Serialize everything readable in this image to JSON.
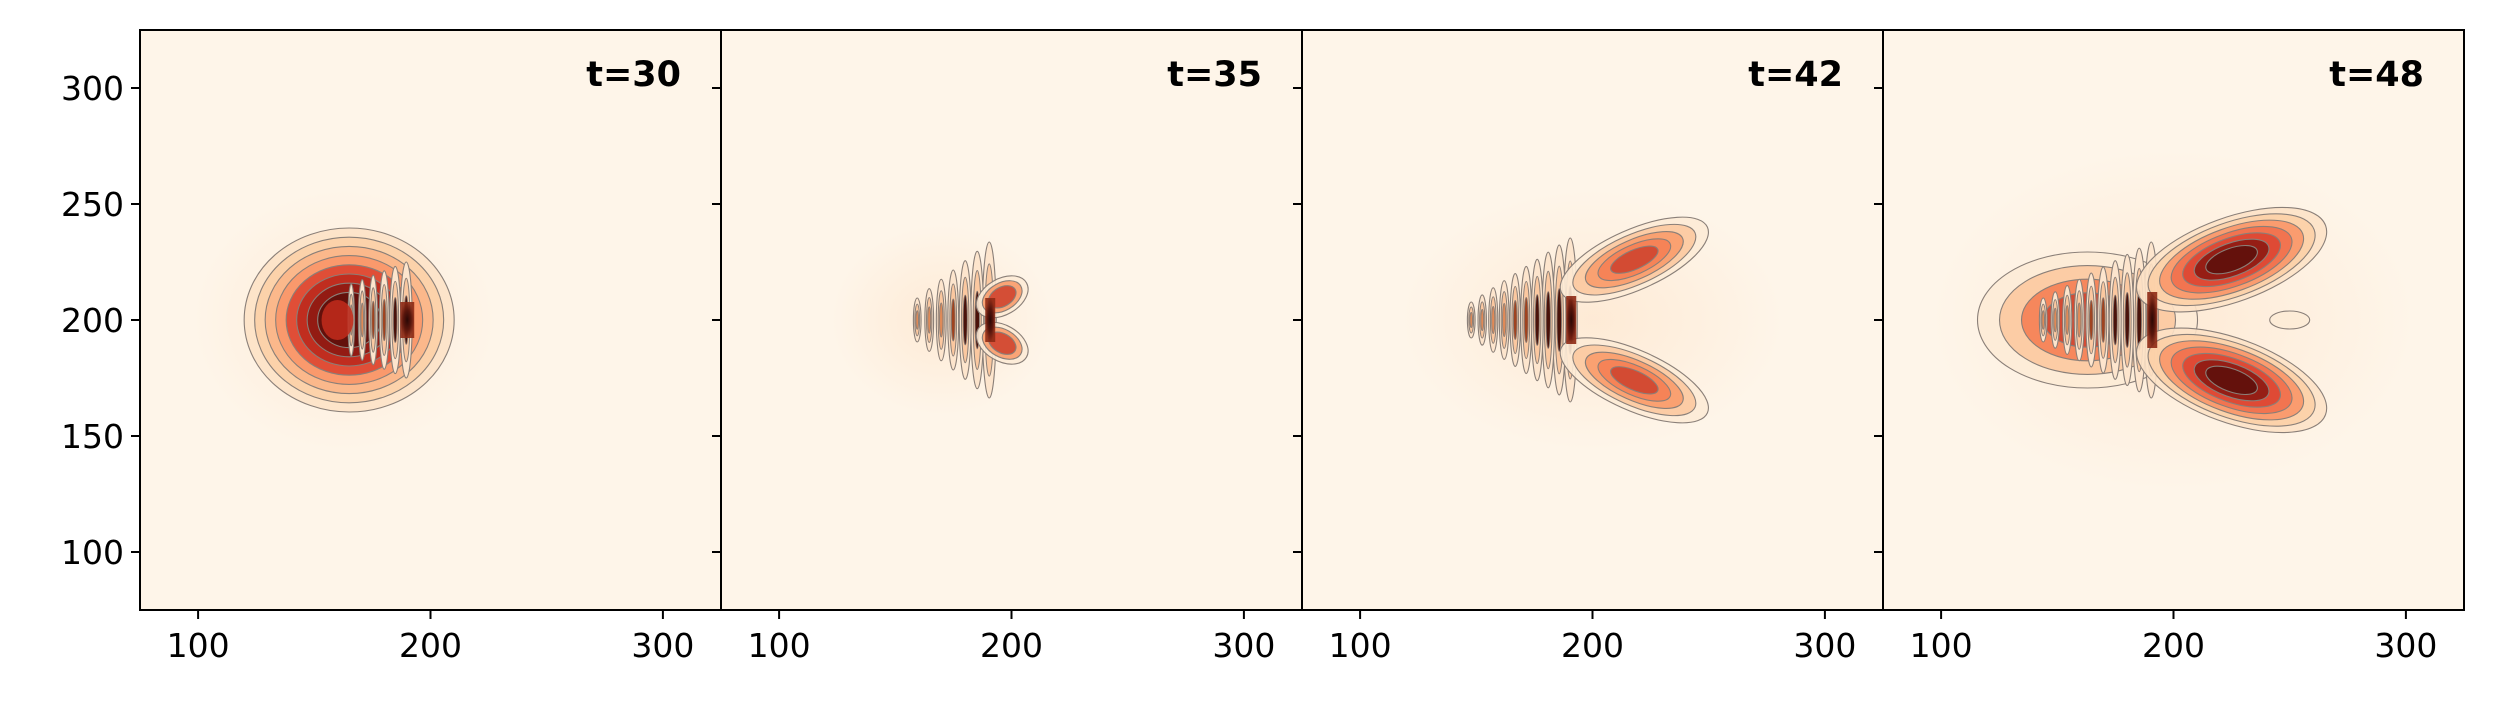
{
  "chart_data": {
    "type": "heatmap",
    "layout": "four panels in a row sharing the y-axis, filled contour plot with thin gray contour lines",
    "colormap": "Oranges-to-dark-red (light cream background, darkest values near black-red)",
    "colors": {
      "background": "#fef5e9",
      "light": "#fde0c0",
      "mid": "#fc9960",
      "high": "#d6301f",
      "peak": "#3a0c07",
      "contour": "#8a7f78"
    },
    "xlim": [
      75,
      325
    ],
    "ylim": [
      75,
      325
    ],
    "xticks": [
      100,
      200,
      300
    ],
    "yticks": [
      100,
      150,
      200,
      250,
      300
    ],
    "xlabel": "",
    "ylabel": "",
    "panels": [
      {
        "label": "t=30",
        "source_x": 193,
        "source_y": 200,
        "pattern": "compact lobe extending left from the source with strong dark-red interior bands"
      },
      {
        "label": "t=35",
        "source_x": 193,
        "source_y": 200,
        "pattern": "narrow backward fan of thin vertical fringes"
      },
      {
        "label": "t=42",
        "source_x": 193,
        "source_y": 200,
        "pattern": "backward fringe fan plus two forward lobes at about ±35 in y"
      },
      {
        "label": "t=48",
        "source_x": 193,
        "source_y": 200,
        "pattern": "wide backward fan, two strong forward lobes near y=228 and y=172, small ellipse near (250,200)"
      }
    ]
  }
}
